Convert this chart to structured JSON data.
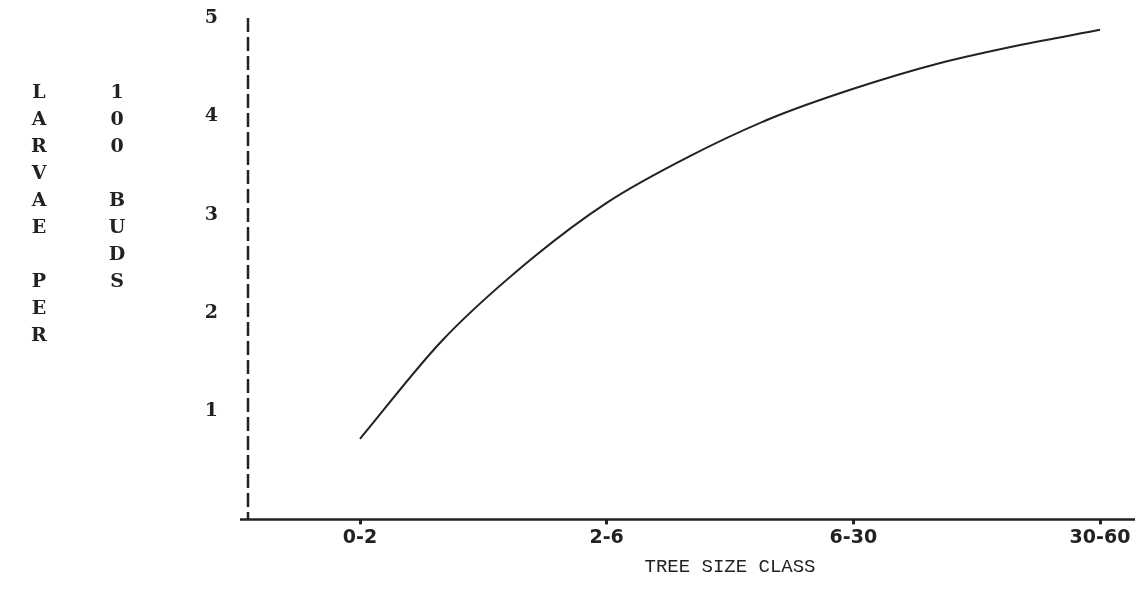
{
  "chart_data": {
    "type": "line",
    "xlabel": "TREE SIZE CLASS",
    "ylabel": "LARVAE PER 100 BUDS",
    "categories": [
      "0-2",
      null,
      null,
      "2-6",
      null,
      null,
      "6-30",
      null,
      null,
      "30-60"
    ],
    "series": [
      {
        "color": "#222222",
        "values": [
          0.72,
          1.72,
          2.49,
          3.12,
          3.59,
          3.98,
          4.28,
          4.53,
          4.72,
          4.88
        ]
      }
    ],
    "ylim": [
      -0.1,
      5
    ],
    "yticks": [
      1,
      2,
      3,
      4,
      5
    ],
    "grid": false,
    "legend": false,
    "marker": "none",
    "line_style": "solid"
  }
}
